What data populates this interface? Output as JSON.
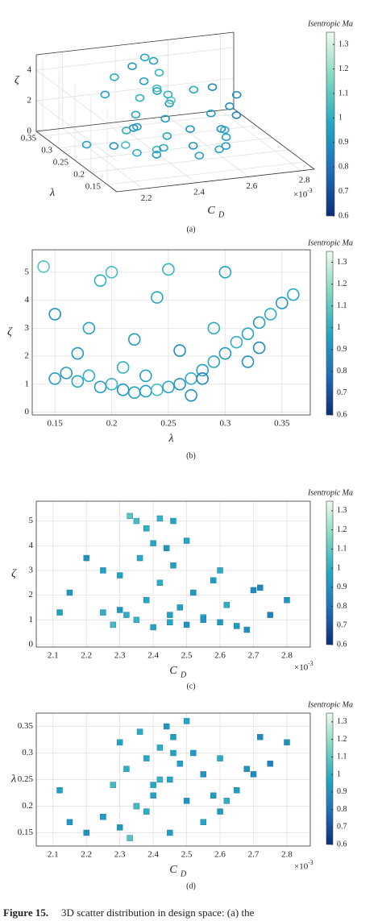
{
  "chart_data": [
    {
      "type": "scatter3d",
      "panel_label": "(a)",
      "marker": "circle",
      "xlabel": "C",
      "xlabel_subscript": "D",
      "ylabel": "λ",
      "zlabel": "ζ",
      "x_scale_base": "×10",
      "x_scale_exponent": "-3",
      "colorbar_label": "Isentropic Ma",
      "clim": [
        0.6,
        1.35
      ],
      "cticks": [
        0.6,
        0.7,
        0.8,
        0.9,
        1,
        1.1,
        1.2,
        1.3
      ],
      "colormap": [
        "#0b2d7a",
        "#1f6fb8",
        "#22a7c4",
        "#7fd8bf",
        "#f0fbef"
      ],
      "grid": true,
      "xlim": [
        0.0021,
        0.00285
      ],
      "xticks": [
        {
          "value": 0.0022,
          "label": "2.2"
        },
        {
          "value": 0.0024,
          "label": "2.4"
        },
        {
          "value": 0.0026,
          "label": "2.6"
        },
        {
          "value": 0.0028,
          "label": "2.8"
        }
      ],
      "ylim": [
        0.12,
        0.37
      ],
      "yticks": [
        0.15,
        0.2,
        0.25,
        0.3,
        0.35
      ],
      "zlim": [
        0,
        5
      ],
      "zticks": [
        0,
        2,
        4
      ],
      "x": [
        0.00245,
        0.0023,
        0.00255,
        0.00225,
        0.0026,
        0.00235,
        0.0025,
        0.0024,
        0.00265,
        0.00228,
        0.00245,
        0.00255,
        0.00232,
        0.00248,
        0.00238,
        0.00252,
        0.00242,
        0.0023,
        0.00246,
        0.00236,
        0.00244,
        0.0025,
        0.00233,
        0.00238,
        0.00235,
        0.0024,
        0.00242,
        0.00246,
        0.0022,
        0.00225,
        0.00258,
        0.0027,
        0.00275,
        0.0028,
        0.00215,
        0.00262,
        0.00268,
        0.00272,
        0.00212,
        0.0026
      ],
      "y": [
        0.15,
        0.16,
        0.17,
        0.18,
        0.19,
        0.2,
        0.21,
        0.22,
        0.23,
        0.24,
        0.25,
        0.26,
        0.27,
        0.28,
        0.29,
        0.3,
        0.31,
        0.32,
        0.33,
        0.34,
        0.35,
        0.36,
        0.14,
        0.19,
        0.2,
        0.24,
        0.25,
        0.3,
        0.15,
        0.18,
        0.22,
        0.26,
        0.28,
        0.32,
        0.17,
        0.21,
        0.27,
        0.33,
        0.23,
        0.29
      ],
      "z": [
        1.2,
        1.4,
        1.1,
        1.3,
        0.9,
        1,
        0.8,
        0.7,
        0.75,
        0.8,
        0.9,
        1,
        1.2,
        1.5,
        1.8,
        2.1,
        2.5,
        2.8,
        3.2,
        3.5,
        3.9,
        4.2,
        5.2,
        4.7,
        5,
        4.1,
        5.1,
        5,
        3.5,
        3,
        2.6,
        2.2,
        1.2,
        1.8,
        2.1,
        1.6,
        0.6,
        2.3,
        1.3,
        3
      ],
      "c": [
        0.95,
        0.92,
        0.97,
        1,
        0.93,
        1.02,
        0.9,
        0.96,
        0.94,
        1.05,
        0.97,
        0.91,
        1,
        0.95,
        0.98,
        0.93,
        1,
        0.96,
        0.94,
        0.99,
        0.92,
        0.97,
        1.08,
        1,
        1.05,
        0.98,
        1.02,
        0.96,
        0.9,
        0.95,
        0.93,
        0.88,
        0.85,
        0.9,
        0.92,
        1,
        0.9,
        0.87,
        0.95,
        0.99
      ]
    },
    {
      "type": "scatter",
      "panel_label": "(b)",
      "marker": "circle",
      "xlabel": "λ",
      "ylabel": "ζ",
      "colorbar_label": "Isentropic Ma",
      "clim": [
        0.6,
        1.35
      ],
      "cticks": [
        0.6,
        0.7,
        0.8,
        0.9,
        1,
        1.1,
        1.2,
        1.3
      ],
      "colormap": [
        "#0b2d7a",
        "#1f6fb8",
        "#22a7c4",
        "#7fd8bf",
        "#f0fbef"
      ],
      "grid": true,
      "xlim": [
        0.13,
        0.375
      ],
      "xticks": [
        0.15,
        0.2,
        0.25,
        0.3,
        0.35
      ],
      "ylim": [
        -0.1,
        5.8
      ],
      "yticks": [
        0,
        1,
        2,
        3,
        4,
        5
      ],
      "x": [
        0.15,
        0.16,
        0.17,
        0.18,
        0.19,
        0.2,
        0.21,
        0.22,
        0.23,
        0.24,
        0.25,
        0.26,
        0.27,
        0.28,
        0.29,
        0.3,
        0.31,
        0.32,
        0.33,
        0.34,
        0.35,
        0.36,
        0.14,
        0.19,
        0.2,
        0.24,
        0.25,
        0.3,
        0.15,
        0.18,
        0.22,
        0.26,
        0.28,
        0.32,
        0.17,
        0.21,
        0.27,
        0.33,
        0.23,
        0.29
      ],
      "y": [
        1.2,
        1.4,
        1.1,
        1.3,
        0.9,
        1,
        0.8,
        0.7,
        0.75,
        0.8,
        0.9,
        1,
        1.2,
        1.5,
        1.8,
        2.1,
        2.5,
        2.8,
        3.2,
        3.5,
        3.9,
        4.2,
        5.2,
        4.7,
        5,
        4.1,
        5.1,
        5,
        3.5,
        3,
        2.6,
        2.2,
        1.2,
        1.8,
        2.1,
        1.6,
        0.6,
        2.3,
        1.3,
        3
      ],
      "c": [
        0.95,
        0.92,
        0.97,
        1,
        0.93,
        1.02,
        0.9,
        0.96,
        0.94,
        1.05,
        0.97,
        0.91,
        1,
        0.95,
        0.98,
        0.93,
        1,
        0.96,
        0.94,
        0.99,
        0.92,
        0.97,
        1.08,
        1,
        1.05,
        0.98,
        1.02,
        0.96,
        0.9,
        0.95,
        0.93,
        0.88,
        0.85,
        0.9,
        0.92,
        1,
        0.9,
        0.87,
        0.95,
        0.99
      ]
    },
    {
      "type": "scatter",
      "panel_label": "(c)",
      "marker": "square",
      "xlabel": "C",
      "xlabel_subscript": "D",
      "ylabel": "ζ",
      "x_scale_base": "×10",
      "x_scale_exponent": "-3",
      "colorbar_label": "Isentropic Ma",
      "clim": [
        0.6,
        1.35
      ],
      "cticks": [
        0.6,
        0.7,
        0.8,
        0.9,
        1,
        1.1,
        1.2,
        1.3
      ],
      "colormap": [
        "#0b2d7a",
        "#1f6fb8",
        "#22a7c4",
        "#7fd8bf",
        "#f0fbef"
      ],
      "grid": true,
      "xlim": [
        0.00205,
        0.00287
      ],
      "xticks": [
        {
          "value": 0.0021,
          "label": "2.1"
        },
        {
          "value": 0.0022,
          "label": "2.2"
        },
        {
          "value": 0.0023,
          "label": "2.3"
        },
        {
          "value": 0.0024,
          "label": "2.4"
        },
        {
          "value": 0.0025,
          "label": "2.5"
        },
        {
          "value": 0.0026,
          "label": "2.6"
        },
        {
          "value": 0.0027,
          "label": "2.7"
        },
        {
          "value": 0.0028,
          "label": "2.8"
        }
      ],
      "ylim": [
        -0.1,
        5.8
      ],
      "yticks": [
        0,
        1,
        2,
        3,
        4,
        5
      ],
      "x": [
        0.00245,
        0.0023,
        0.00255,
        0.00225,
        0.0026,
        0.00235,
        0.0025,
        0.0024,
        0.00265,
        0.00228,
        0.00245,
        0.00255,
        0.00232,
        0.00248,
        0.00238,
        0.00252,
        0.00242,
        0.0023,
        0.00246,
        0.00236,
        0.00244,
        0.0025,
        0.00233,
        0.00238,
        0.00235,
        0.0024,
        0.00242,
        0.00246,
        0.0022,
        0.00225,
        0.00258,
        0.0027,
        0.00275,
        0.0028,
        0.00215,
        0.00262,
        0.00268,
        0.00272,
        0.00212,
        0.0026
      ],
      "y": [
        1.2,
        1.4,
        1.1,
        1.3,
        0.9,
        1,
        0.8,
        0.7,
        0.75,
        0.8,
        0.9,
        1,
        1.2,
        1.5,
        1.8,
        2.1,
        2.5,
        2.8,
        3.2,
        3.5,
        3.9,
        4.2,
        5.2,
        4.7,
        5,
        4.1,
        5.1,
        5,
        3.5,
        3,
        2.6,
        2.2,
        1.2,
        1.8,
        2.1,
        1.6,
        0.6,
        2.3,
        1.3,
        3
      ],
      "c": [
        0.95,
        0.92,
        0.97,
        1,
        0.93,
        1.02,
        0.9,
        0.96,
        0.94,
        1.05,
        0.97,
        0.91,
        1,
        0.95,
        0.98,
        0.93,
        1,
        0.96,
        0.94,
        0.99,
        0.92,
        0.97,
        1.08,
        1,
        1.05,
        0.98,
        1.02,
        0.96,
        0.9,
        0.95,
        0.93,
        0.88,
        0.85,
        0.9,
        0.92,
        1,
        0.9,
        0.87,
        0.95,
        0.99
      ]
    },
    {
      "type": "scatter",
      "panel_label": "(d)",
      "marker": "square",
      "xlabel": "C",
      "xlabel_subscript": "D",
      "ylabel": "λ",
      "x_scale_base": "×10",
      "x_scale_exponent": "-3",
      "colorbar_label": "Isentropic Ma",
      "clim": [
        0.6,
        1.35
      ],
      "cticks": [
        0.6,
        0.7,
        0.8,
        0.9,
        1,
        1.1,
        1.2,
        1.3
      ],
      "colormap": [
        "#0b2d7a",
        "#1f6fb8",
        "#22a7c4",
        "#7fd8bf",
        "#f0fbef"
      ],
      "grid": true,
      "xlim": [
        0.00205,
        0.00287
      ],
      "xticks": [
        {
          "value": 0.0021,
          "label": "2.1"
        },
        {
          "value": 0.0022,
          "label": "2.2"
        },
        {
          "value": 0.0023,
          "label": "2.3"
        },
        {
          "value": 0.0024,
          "label": "2.4"
        },
        {
          "value": 0.0025,
          "label": "2.5"
        },
        {
          "value": 0.0026,
          "label": "2.6"
        },
        {
          "value": 0.0027,
          "label": "2.7"
        },
        {
          "value": 0.0028,
          "label": "2.8"
        }
      ],
      "ylim": [
        0.125,
        0.375
      ],
      "yticks": [
        0.15,
        0.2,
        0.25,
        0.3,
        0.35
      ],
      "x": [
        0.00245,
        0.0023,
        0.00255,
        0.00225,
        0.0026,
        0.00235,
        0.0025,
        0.0024,
        0.00265,
        0.00228,
        0.00245,
        0.00255,
        0.00232,
        0.00248,
        0.00238,
        0.00252,
        0.00242,
        0.0023,
        0.00246,
        0.00236,
        0.00244,
        0.0025,
        0.00233,
        0.00238,
        0.00235,
        0.0024,
        0.00242,
        0.00246,
        0.0022,
        0.00225,
        0.00258,
        0.0027,
        0.00275,
        0.0028,
        0.00215,
        0.00262,
        0.00268,
        0.00272,
        0.00212,
        0.0026
      ],
      "y": [
        0.15,
        0.16,
        0.17,
        0.18,
        0.19,
        0.2,
        0.21,
        0.22,
        0.23,
        0.24,
        0.25,
        0.26,
        0.27,
        0.28,
        0.29,
        0.3,
        0.31,
        0.32,
        0.33,
        0.34,
        0.35,
        0.36,
        0.14,
        0.19,
        0.2,
        0.24,
        0.25,
        0.3,
        0.15,
        0.18,
        0.22,
        0.26,
        0.28,
        0.32,
        0.17,
        0.21,
        0.27,
        0.33,
        0.23,
        0.29
      ],
      "c": [
        0.95,
        0.92,
        0.97,
        1,
        0.93,
        1.02,
        0.9,
        0.96,
        0.94,
        1.05,
        0.97,
        0.91,
        1,
        0.95,
        0.98,
        0.93,
        1,
        0.96,
        0.94,
        0.99,
        0.92,
        0.97,
        1.08,
        1,
        1.05,
        0.98,
        1.02,
        0.96,
        0.9,
        0.95,
        0.93,
        0.88,
        0.85,
        0.9,
        0.92,
        1,
        0.9,
        0.87,
        0.95,
        0.99
      ]
    }
  ],
  "caption": {
    "label": "Figure 15.",
    "text": "3D scatter distribution in design space: (a) the"
  }
}
